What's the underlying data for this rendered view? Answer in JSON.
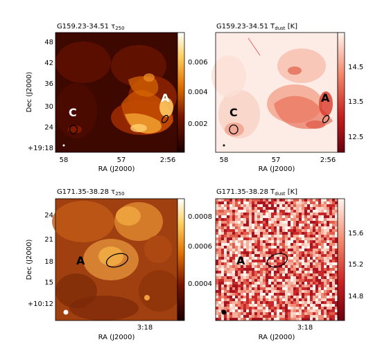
{
  "figure": {
    "panels": [
      {
        "id": "p1",
        "title": "G159.23-34.51 τ",
        "title_sub": "250",
        "title_tail": "",
        "colormap": "afmhot",
        "ylabel": "Dec (J2000)",
        "xlabel": "RA (J2000)",
        "xticks": [
          "58",
          "57",
          "2:56"
        ],
        "yticks": [
          "48",
          "42",
          "36",
          "30",
          "24",
          "+19:18"
        ],
        "cbar_ticks": [
          "0.006",
          "0.004",
          "0.002"
        ],
        "labels": [
          {
            "text": "C",
            "color": "#ffffff"
          },
          {
            "text": "A",
            "color": "#ffffff"
          }
        ]
      },
      {
        "id": "p2",
        "title": "G159.23-34.51 T",
        "title_sub": "dust",
        "title_tail": " [K]",
        "colormap": "reds_r",
        "ylabel": "",
        "xlabel": "RA (J2000)",
        "xticks": [
          "58",
          "57",
          "2:56"
        ],
        "yticks": [],
        "cbar_ticks": [
          "14.5",
          "13.5",
          "12.5"
        ],
        "labels": [
          {
            "text": "C",
            "color": "#000000"
          },
          {
            "text": "A",
            "color": "#000000"
          }
        ]
      },
      {
        "id": "p3",
        "title": "G171.35-38.28 τ",
        "title_sub": "250",
        "title_tail": "",
        "colormap": "afmhot",
        "ylabel": "Dec (J2000)",
        "xlabel": "RA (J2000)",
        "xticks": [
          "3:18"
        ],
        "yticks": [
          "24",
          "21",
          "18",
          "15",
          "+10:12"
        ],
        "cbar_ticks": [
          "0.0008",
          "0.0006",
          "0.0004"
        ],
        "labels": [
          {
            "text": "A",
            "color": "#000000"
          }
        ]
      },
      {
        "id": "p4",
        "title": "G171.35-38.28 T",
        "title_sub": "dust",
        "title_tail": " [K]",
        "colormap": "reds_r",
        "ylabel": "",
        "xlabel": "RA (J2000)",
        "xticks": [
          "3:18"
        ],
        "yticks": [],
        "cbar_ticks": [
          "15.6",
          "15.2",
          "14.8"
        ],
        "labels": [
          {
            "text": "A",
            "color": "#000000"
          }
        ]
      }
    ]
  }
}
